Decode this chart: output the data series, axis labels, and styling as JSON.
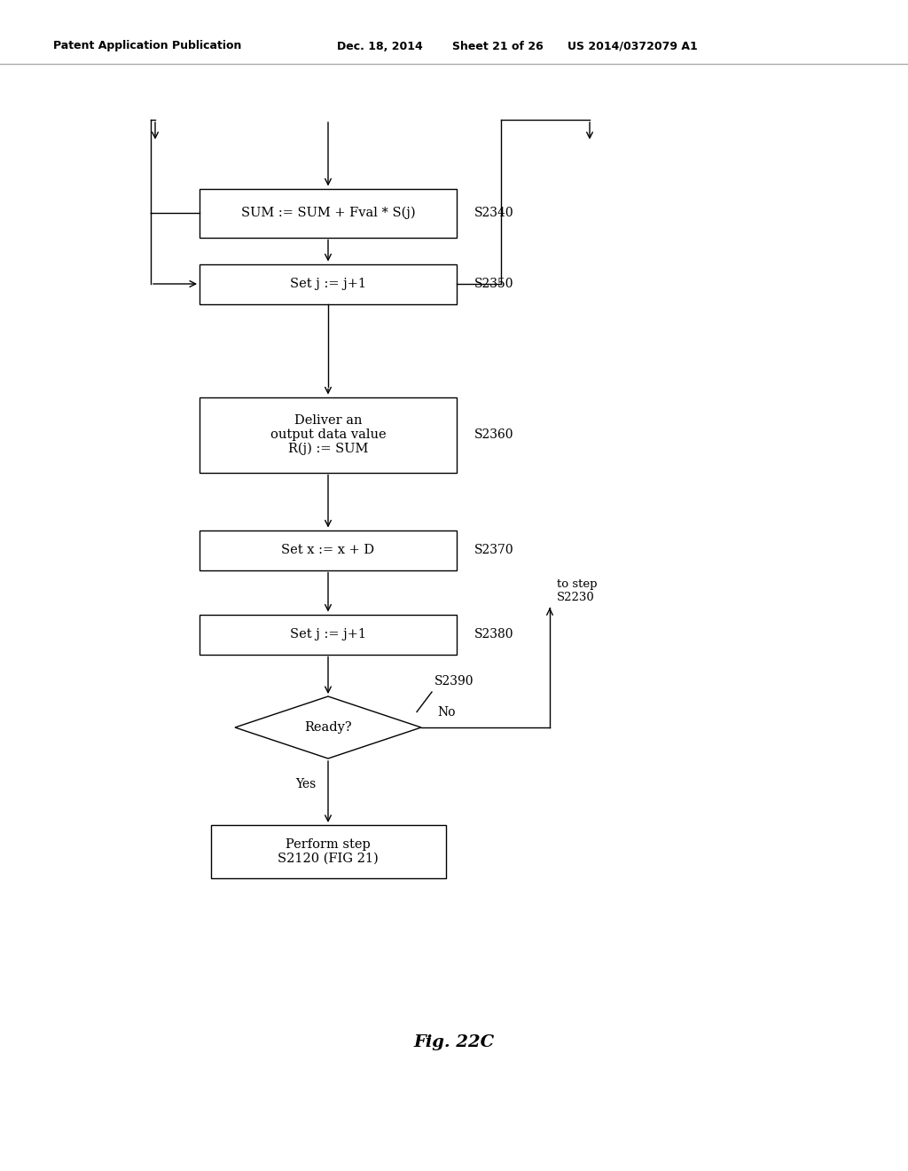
{
  "bg_color": "#ffffff",
  "header_line1": "Patent Application Publication",
  "header_line2": "Dec. 18, 2014",
  "header_line3": "Sheet 21 of 26",
  "header_line4": "US 2014/0372079 A1",
  "fig_label": "Fig. 22C",
  "lc": "#000000",
  "tc": "#000000",
  "s2340_label": "SUM := SUM + Fval * S(j)",
  "s2350_label": "Set j := j+1",
  "s2360_label": "Deliver an\noutput data value\nR(j) := SUM",
  "s2370_label": "Set x := x + D",
  "s2380_label": "Set j := j+1",
  "s2390_label": "Ready?",
  "term_label": "Perform step\nS2120 (FIG 21)",
  "step_labels": [
    "S2340",
    "S2350",
    "S2360",
    "S2370",
    "S2380",
    "S2390"
  ],
  "to_step_label": "to step\nS2230",
  "yes_label": "Yes",
  "no_label": "No"
}
